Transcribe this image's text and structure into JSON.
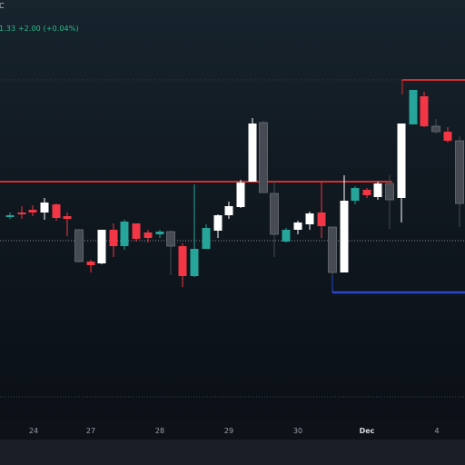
{
  "chart": {
    "symbol_fragment": "C",
    "ohlc_fragment": "1.33 +2.00 (+0.04%)",
    "colors": {
      "up_fill": "#ffffff",
      "up_teal": "#26a69a",
      "down_red": "#f23645",
      "down_gray": "#454a53",
      "resistance_line": "#d32d2d",
      "support_line": "#2a48c9",
      "dotted_line": "#8a8f99"
    }
  },
  "time_axis": {
    "labels": [
      {
        "text": "24",
        "strong": false
      },
      {
        "text": "27",
        "strong": false
      },
      {
        "text": "28",
        "strong": false
      },
      {
        "text": "29",
        "strong": false
      },
      {
        "text": "30",
        "strong": false
      },
      {
        "text": "Dec",
        "strong": true
      },
      {
        "text": "4",
        "strong": false
      }
    ]
  }
}
